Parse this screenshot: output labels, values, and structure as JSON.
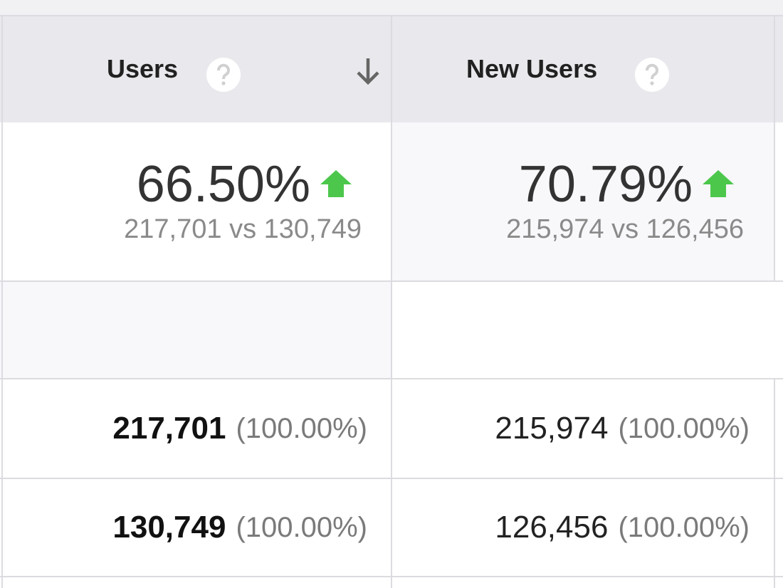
{
  "table": {
    "headers": [
      "Users",
      "New Users"
    ],
    "summary": [
      {
        "change": "66.50%",
        "comparison": "217,701 vs 130,749"
      },
      {
        "change": "70.79%",
        "comparison": "215,974 vs 126,456"
      }
    ],
    "rows": [
      [
        {
          "value": "217,701",
          "percent": "(100.00%)"
        },
        {
          "value": "215,974",
          "percent": "(100.00%)"
        }
      ],
      [
        {
          "value": "130,749",
          "percent": "(100.00%)"
        },
        {
          "value": "126,456",
          "percent": "(100.00%)"
        }
      ]
    ]
  }
}
